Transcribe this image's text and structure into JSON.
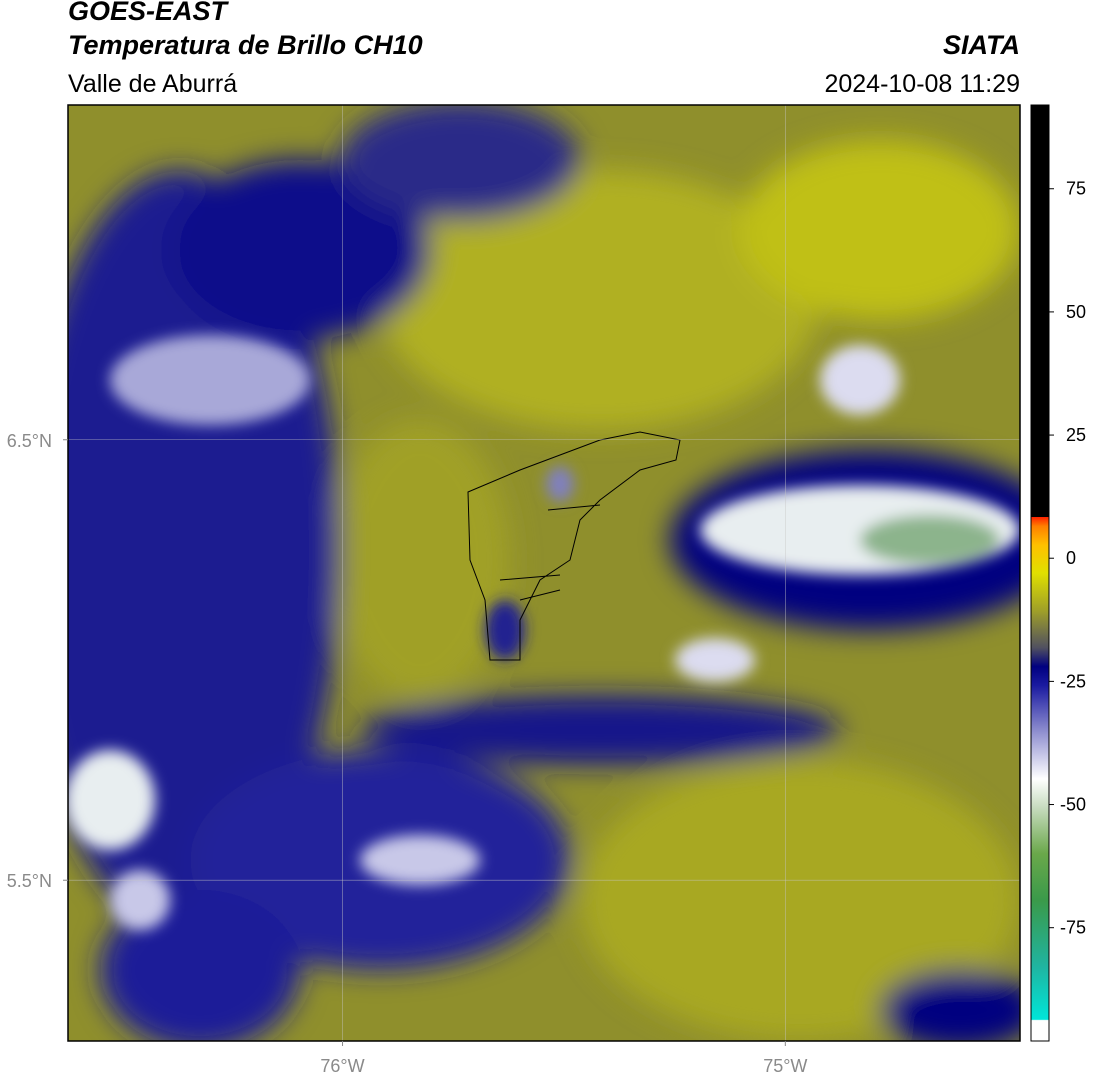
{
  "header": {
    "title": "GOES-EAST",
    "subtitle": "Temperatura de Brillo CH10",
    "region": "Valle de Aburrá",
    "source": "SIATA",
    "datetime": "2024-10-08 11:29"
  },
  "map": {
    "xlim": [
      -76.62,
      -74.47
    ],
    "ylim": [
      5.135,
      7.26
    ],
    "xticks": [
      {
        "value": -76,
        "label": "76°W"
      },
      {
        "value": -75,
        "label": "75°W"
      }
    ],
    "yticks": [
      {
        "value": 5.5,
        "label": "5.5°N"
      },
      {
        "value": 6.5,
        "label": "6.5°N"
      }
    ],
    "grid": true
  },
  "colorbar": {
    "range": [
      -98,
      92
    ],
    "ticks": [
      75,
      50,
      25,
      0,
      -25,
      -50,
      -75
    ]
  }
}
